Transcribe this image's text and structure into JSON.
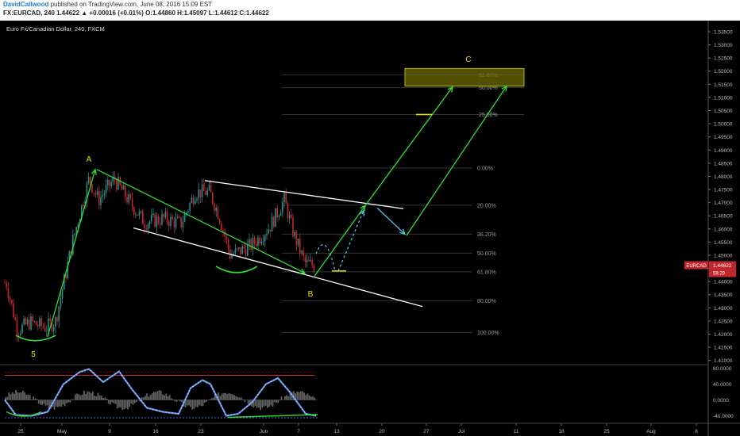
{
  "header": {
    "author": "DavidCallwood",
    "published": "published on TradingView.com, June 08, 2016 15:09 EST",
    "ticker_line": "FX:EURCAD, 240 1.44622 ▲ +0.00016 (+0.01%) O:1.44860 H:1.45097 L:1.44612 C:1.44622"
  },
  "symbol_title": "Euro Fx/Canadian Dollar, 240, FXCM",
  "chart_data": {
    "type": "candlestick",
    "price_axis": {
      "ticks": [
        "1.53500",
        "1.53000",
        "1.52500",
        "1.52000",
        "1.51500",
        "1.51000",
        "1.50500",
        "1.50000",
        "1.49500",
        "1.49000",
        "1.48500",
        "1.48000",
        "1.47500",
        "1.47000",
        "1.46500",
        "1.46000",
        "1.45500",
        "1.45000",
        "1.44500",
        "1.44000",
        "1.43500",
        "1.43000",
        "1.42500",
        "1.42000",
        "1.41500",
        "1.41000"
      ],
      "range": [
        1.409,
        1.538
      ]
    },
    "date_axis": [
      "25",
      "May",
      "9",
      "16",
      "23",
      "Jun",
      "7",
      "13",
      "20",
      "27",
      "Jul",
      "11",
      "18",
      "25",
      "Aug",
      "8"
    ],
    "last_price_label": "EURCAD",
    "last_price": "1.44622",
    "last_price_sub": "58:29",
    "wave_labels": [
      "5",
      "A",
      "B",
      "C"
    ],
    "fib_levels": [
      {
        "label": "61.80%",
        "price": 1.5186
      },
      {
        "label": "50.00%",
        "price": 1.5137
      },
      {
        "label": "25.00%",
        "price": 1.5035
      },
      {
        "label": "0.00%",
        "price": 1.4832
      },
      {
        "label": "20.00%",
        "price": 1.469
      },
      {
        "label": "38.20%",
        "price": 1.458
      },
      {
        "label": "50.00%",
        "price": 1.4508
      },
      {
        "label": "61.80%",
        "price": 1.4437
      },
      {
        "label": "80.00%",
        "price": 1.4327
      },
      {
        "label": "100.00%",
        "price": 1.4206
      }
    ],
    "target_box": {
      "top": 1.521,
      "bottom": 1.5143
    },
    "oscillator": {
      "ticks": [
        "80.0000",
        "40.0000",
        "0.0000",
        "-40.0000"
      ],
      "range": [
        -55,
        85
      ]
    }
  }
}
